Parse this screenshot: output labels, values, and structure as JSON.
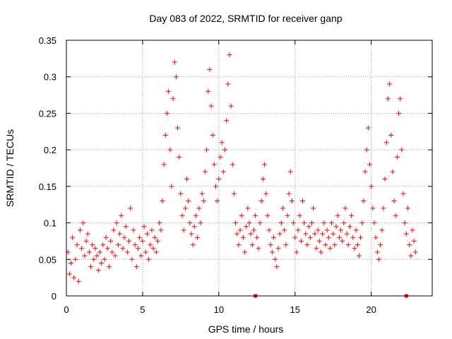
{
  "chart_data": {
    "type": "scatter",
    "title": "Day 083 of 2022, SRMTID for receiver ganp",
    "xlabel": "GPS time / hours",
    "ylabel": "SRMTID / TECUs",
    "xlim": [
      0,
      24
    ],
    "ylim": [
      0,
      0.35
    ],
    "x_ticks": [
      0,
      5,
      10,
      15,
      20
    ],
    "y_ticks": [
      0,
      0.05,
      0.1,
      0.15,
      0.2,
      0.25,
      0.3,
      0.35
    ],
    "x_tick_labels": [
      "0",
      "5",
      "10",
      "15",
      "20"
    ],
    "y_tick_labels": [
      "0",
      "0.05",
      "0.1",
      "0.15",
      "0.2",
      "0.25",
      "0.3",
      "0.35"
    ],
    "grid": true,
    "marker": "+",
    "color": "#ff0000",
    "baseline_markers": [
      12.4,
      22.3
    ],
    "series": [
      {
        "name": "SRMTID",
        "points": [
          [
            0.1,
            0.06
          ],
          [
            0.2,
            0.03
          ],
          [
            0.3,
            0.045
          ],
          [
            0.4,
            0.08
          ],
          [
            0.5,
            0.025
          ],
          [
            0.6,
            0.05
          ],
          [
            0.7,
            0.07
          ],
          [
            0.8,
            0.02
          ],
          [
            0.9,
            0.09
          ],
          [
            1.0,
            0.065
          ],
          [
            1.1,
            0.1
          ],
          [
            1.2,
            0.055
          ],
          [
            1.3,
            0.075
          ],
          [
            1.4,
            0.085
          ],
          [
            1.5,
            0.06
          ],
          [
            1.6,
            0.04
          ],
          [
            1.7,
            0.07
          ],
          [
            1.8,
            0.05
          ],
          [
            1.9,
            0.065
          ],
          [
            2.0,
            0.055
          ],
          [
            2.1,
            0.035
          ],
          [
            2.2,
            0.06
          ],
          [
            2.3,
            0.045
          ],
          [
            2.4,
            0.07
          ],
          [
            2.5,
            0.05
          ],
          [
            2.6,
            0.08
          ],
          [
            2.7,
            0.065
          ],
          [
            2.8,
            0.04
          ],
          [
            2.9,
            0.075
          ],
          [
            3.0,
            0.06
          ],
          [
            3.1,
            0.09
          ],
          [
            3.2,
            0.055
          ],
          [
            3.3,
            0.1
          ],
          [
            3.4,
            0.07
          ],
          [
            3.5,
            0.085
          ],
          [
            3.6,
            0.11
          ],
          [
            3.7,
            0.065
          ],
          [
            3.8,
            0.08
          ],
          [
            3.9,
            0.095
          ],
          [
            4.0,
            0.06
          ],
          [
            4.1,
            0.075
          ],
          [
            4.2,
            0.12
          ],
          [
            4.3,
            0.05
          ],
          [
            4.4,
            0.09
          ],
          [
            4.5,
            0.07
          ],
          [
            4.6,
            0.04
          ],
          [
            4.7,
            0.065
          ],
          [
            4.8,
            0.08
          ],
          [
            4.9,
            0.055
          ],
          [
            5.0,
            0.075
          ],
          [
            5.1,
            0.095
          ],
          [
            5.2,
            0.06
          ],
          [
            5.3,
            0.085
          ],
          [
            5.4,
            0.05
          ],
          [
            5.5,
            0.07
          ],
          [
            5.6,
            0.09
          ],
          [
            5.7,
            0.065
          ],
          [
            5.8,
            0.08
          ],
          [
            5.9,
            0.06
          ],
          [
            6.0,
            0.075
          ],
          [
            6.1,
            0.1
          ],
          [
            6.2,
            0.09
          ],
          [
            6.3,
            0.13
          ],
          [
            6.4,
            0.18
          ],
          [
            6.5,
            0.22
          ],
          [
            6.6,
            0.25
          ],
          [
            6.7,
            0.28
          ],
          [
            6.8,
            0.2
          ],
          [
            6.9,
            0.15
          ],
          [
            7.0,
            0.27
          ],
          [
            7.1,
            0.32
          ],
          [
            7.2,
            0.3
          ],
          [
            7.3,
            0.23
          ],
          [
            7.4,
            0.19
          ],
          [
            7.5,
            0.14
          ],
          [
            7.6,
            0.11
          ],
          [
            7.7,
            0.09
          ],
          [
            7.8,
            0.12
          ],
          [
            7.9,
            0.16
          ],
          [
            8.0,
            0.13
          ],
          [
            8.1,
            0.1
          ],
          [
            8.2,
            0.085
          ],
          [
            8.3,
            0.07
          ],
          [
            8.4,
            0.095
          ],
          [
            8.5,
            0.11
          ],
          [
            8.6,
            0.08
          ],
          [
            8.7,
            0.12
          ],
          [
            8.8,
            0.1
          ],
          [
            8.9,
            0.14
          ],
          [
            9.0,
            0.13
          ],
          [
            9.1,
            0.17
          ],
          [
            9.2,
            0.2
          ],
          [
            9.3,
            0.28
          ],
          [
            9.4,
            0.31
          ],
          [
            9.5,
            0.26
          ],
          [
            9.6,
            0.22
          ],
          [
            9.7,
            0.18
          ],
          [
            9.8,
            0.15
          ],
          [
            9.9,
            0.13
          ],
          [
            10.0,
            0.16
          ],
          [
            10.1,
            0.19
          ],
          [
            10.2,
            0.21
          ],
          [
            10.3,
            0.17
          ],
          [
            10.4,
            0.2
          ],
          [
            10.5,
            0.24
          ],
          [
            10.6,
            0.29
          ],
          [
            10.7,
            0.33
          ],
          [
            10.8,
            0.26
          ],
          [
            10.9,
            0.18
          ],
          [
            11.0,
            0.14
          ],
          [
            11.1,
            0.1
          ],
          [
            11.2,
            0.085
          ],
          [
            11.3,
            0.07
          ],
          [
            11.4,
            0.09
          ],
          [
            11.5,
            0.11
          ],
          [
            11.6,
            0.08
          ],
          [
            11.7,
            0.06
          ],
          [
            11.8,
            0.095
          ],
          [
            11.9,
            0.12
          ],
          [
            12.0,
            0.1
          ],
          [
            12.1,
            0.085
          ],
          [
            12.2,
            0.07
          ],
          [
            12.3,
            0.09
          ],
          [
            12.4,
            0.11
          ],
          [
            12.5,
            0.08
          ],
          [
            12.6,
            0.065
          ],
          [
            12.7,
            0.1
          ],
          [
            12.8,
            0.13
          ],
          [
            12.9,
            0.16
          ],
          [
            13.0,
            0.18
          ],
          [
            13.1,
            0.14
          ],
          [
            13.2,
            0.11
          ],
          [
            13.3,
            0.09
          ],
          [
            13.4,
            0.07
          ],
          [
            13.5,
            0.06
          ],
          [
            13.6,
            0.08
          ],
          [
            13.7,
            0.05
          ],
          [
            13.8,
            0.04
          ],
          [
            13.9,
            0.065
          ],
          [
            14.0,
            0.085
          ],
          [
            14.1,
            0.1
          ],
          [
            14.2,
            0.12
          ],
          [
            14.3,
            0.09
          ],
          [
            14.4,
            0.07
          ],
          [
            14.5,
            0.11
          ],
          [
            14.6,
            0.14
          ],
          [
            14.7,
            0.17
          ],
          [
            14.8,
            0.13
          ],
          [
            14.9,
            0.1
          ],
          [
            15.0,
            0.08
          ],
          [
            15.1,
            0.06
          ],
          [
            15.2,
            0.09
          ],
          [
            15.3,
            0.11
          ],
          [
            15.4,
            0.075
          ],
          [
            15.5,
            0.13
          ],
          [
            15.6,
            0.1
          ],
          [
            15.7,
            0.085
          ],
          [
            15.8,
            0.07
          ],
          [
            15.9,
            0.095
          ],
          [
            16.0,
            0.08
          ],
          [
            16.1,
            0.1
          ],
          [
            16.2,
            0.12
          ],
          [
            16.3,
            0.085
          ],
          [
            16.4,
            0.065
          ],
          [
            16.5,
            0.09
          ],
          [
            16.6,
            0.075
          ],
          [
            16.7,
            0.06
          ],
          [
            16.8,
            0.085
          ],
          [
            16.9,
            0.1
          ],
          [
            17.0,
            0.07
          ],
          [
            17.1,
            0.09
          ],
          [
            17.2,
            0.08
          ],
          [
            17.3,
            0.065
          ],
          [
            17.4,
            0.1
          ],
          [
            17.5,
            0.085
          ],
          [
            17.6,
            0.07
          ],
          [
            17.7,
            0.095
          ],
          [
            17.8,
            0.11
          ],
          [
            17.9,
            0.08
          ],
          [
            18.0,
            0.09
          ],
          [
            18.1,
            0.075
          ],
          [
            18.2,
            0.1
          ],
          [
            18.3,
            0.12
          ],
          [
            18.4,
            0.085
          ],
          [
            18.5,
            0.07
          ],
          [
            18.6,
            0.095
          ],
          [
            18.7,
            0.11
          ],
          [
            18.8,
            0.08
          ],
          [
            18.9,
            0.065
          ],
          [
            19.0,
            0.09
          ],
          [
            19.1,
            0.07
          ],
          [
            19.2,
            0.055
          ],
          [
            19.3,
            0.08
          ],
          [
            19.4,
            0.1
          ],
          [
            19.5,
            0.13
          ],
          [
            19.6,
            0.17
          ],
          [
            19.7,
            0.2
          ],
          [
            19.8,
            0.23
          ],
          [
            19.9,
            0.18
          ],
          [
            20.0,
            0.15
          ],
          [
            20.1,
            0.12
          ],
          [
            20.2,
            0.1
          ],
          [
            20.3,
            0.08
          ],
          [
            20.4,
            0.06
          ],
          [
            20.5,
            0.05
          ],
          [
            20.6,
            0.07
          ],
          [
            20.7,
            0.09
          ],
          [
            20.8,
            0.12
          ],
          [
            20.9,
            0.16
          ],
          [
            21.0,
            0.21
          ],
          [
            21.1,
            0.27
          ],
          [
            21.2,
            0.29
          ],
          [
            21.3,
            0.22
          ],
          [
            21.4,
            0.17
          ],
          [
            21.5,
            0.13
          ],
          [
            21.6,
            0.11
          ],
          [
            21.7,
            0.19
          ],
          [
            21.8,
            0.25
          ],
          [
            21.9,
            0.27
          ],
          [
            22.0,
            0.2
          ],
          [
            22.1,
            0.14
          ],
          [
            22.2,
            0.1
          ],
          [
            22.3,
            0.085
          ],
          [
            22.4,
            0.12
          ],
          [
            22.5,
            0.07
          ],
          [
            22.6,
            0.055
          ],
          [
            22.7,
            0.09
          ],
          [
            22.8,
            0.075
          ],
          [
            22.9,
            0.06
          ]
        ]
      }
    ]
  }
}
